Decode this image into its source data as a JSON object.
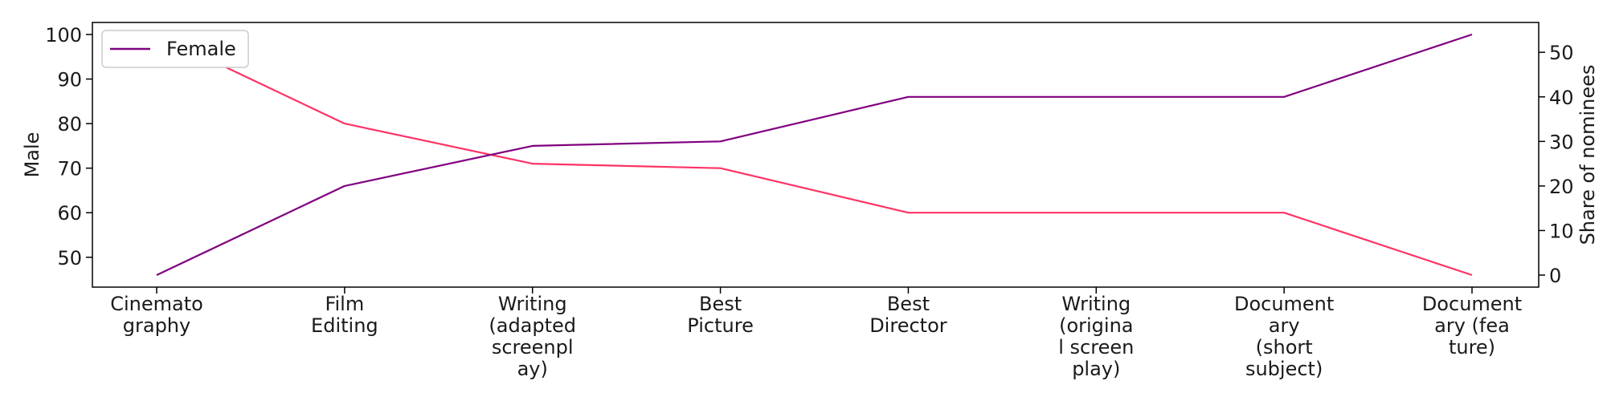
{
  "colors": {
    "male_line": "#ff3366",
    "female_line": "#800080",
    "axis": "#000000",
    "background": "#ffffff"
  },
  "chart_data": {
    "type": "line",
    "categories": [
      "Cinemato\ngraphy",
      "Film\nEditing",
      "Writing\n(adapted\nscreenpl\nay)",
      "Best\nPicture",
      "Best\nDirector",
      "Writing\n(origina\nl screen\nplay)",
      "Document\nary\n(short\nsubject)",
      "Document\nary (fea\nture)"
    ],
    "series": [
      {
        "name": "Male",
        "axis": "left",
        "color": "#ff3366",
        "values": [
          100,
          80,
          71,
          70,
          60,
          60,
          60,
          46
        ]
      },
      {
        "name": "Female",
        "axis": "right",
        "color": "#800080",
        "values": [
          0,
          20,
          29,
          30,
          40,
          40,
          40,
          54
        ]
      }
    ],
    "ylabel_left": "Male",
    "ylabel_right": "Share of nominees",
    "yticks_left": [
      50,
      60,
      70,
      80,
      90,
      100
    ],
    "yticks_right": [
      0,
      10,
      20,
      30,
      40,
      50
    ],
    "ylim_left": [
      43.3,
      102.7
    ],
    "ylim_right": [
      -2.7,
      56.7
    ],
    "legend": {
      "position": "top-left",
      "entries": [
        "Female"
      ]
    },
    "grid": false
  }
}
